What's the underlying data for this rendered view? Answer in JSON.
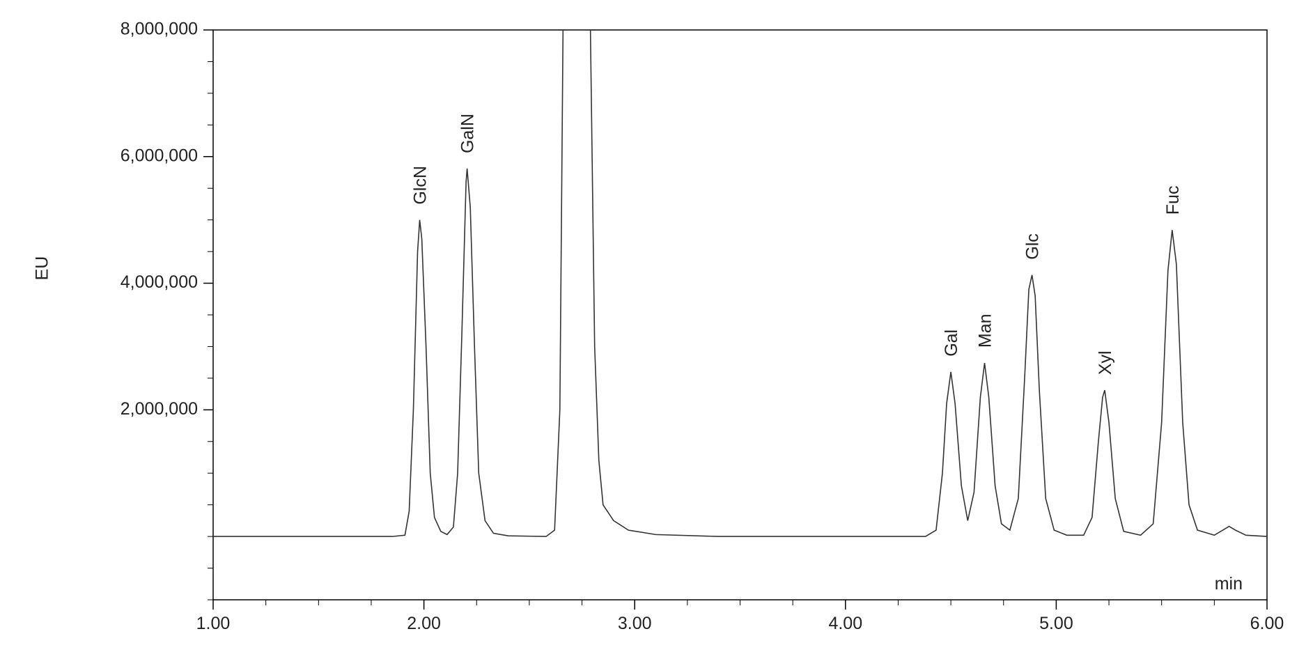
{
  "chart_data": {
    "type": "line",
    "y_label": "EU",
    "x_label": "min",
    "xlim": [
      1,
      6
    ],
    "ylim": [
      -1000000,
      8000000
    ],
    "xticks": [
      {
        "value": 1,
        "label": "1.00"
      },
      {
        "value": 2,
        "label": "2.00"
      },
      {
        "value": 3,
        "label": "3.00"
      },
      {
        "value": 4,
        "label": "4.00"
      },
      {
        "value": 5,
        "label": "5.00"
      },
      {
        "value": 6,
        "label": "6.00"
      }
    ],
    "yticks": [
      {
        "value": 2000000,
        "label": "2,000,000"
      },
      {
        "value": 4000000,
        "label": "4,000,000"
      },
      {
        "value": 6000000,
        "label": "6,000,000"
      },
      {
        "value": 8000000,
        "label": "8,000,000"
      }
    ],
    "x": [
      1.0,
      1.85,
      1.91,
      1.93,
      1.95,
      1.97,
      1.98,
      1.99,
      2.01,
      2.03,
      2.05,
      2.08,
      2.11,
      2.14,
      2.16,
      2.18,
      2.2,
      2.205,
      2.22,
      2.24,
      2.26,
      2.29,
      2.33,
      2.4,
      2.58,
      2.62,
      2.645,
      2.66,
      2.79,
      2.81,
      2.83,
      2.85,
      2.9,
      2.97,
      3.1,
      3.4,
      4.38,
      4.43,
      4.46,
      4.48,
      4.5,
      4.52,
      4.55,
      4.58,
      4.61,
      4.64,
      4.66,
      4.68,
      4.71,
      4.74,
      4.78,
      4.82,
      4.85,
      4.87,
      4.885,
      4.9,
      4.92,
      4.95,
      4.99,
      5.05,
      5.13,
      5.17,
      5.2,
      5.22,
      5.23,
      5.25,
      5.28,
      5.32,
      5.4,
      5.46,
      5.5,
      5.53,
      5.55,
      5.57,
      5.6,
      5.63,
      5.67,
      5.75,
      5.79,
      5.82,
      5.85,
      5.9,
      6.0
    ],
    "series": [
      {
        "color": "#333333",
        "values": [
          0,
          0,
          20000,
          400000,
          2000000,
          4500000,
          5000000,
          4700000,
          3000000,
          1000000,
          300000,
          80000,
          30000,
          150000,
          1000000,
          3200000,
          5600000,
          5810000,
          5200000,
          3000000,
          1000000,
          250000,
          50000,
          10000,
          0,
          100000,
          2000000,
          8000000,
          8000000,
          3000000,
          1200000,
          500000,
          250000,
          100000,
          30000,
          0,
          0,
          100000,
          1000000,
          2100000,
          2600000,
          2100000,
          800000,
          250000,
          700000,
          2200000,
          2740000,
          2200000,
          800000,
          200000,
          100000,
          600000,
          2500000,
          3900000,
          4130000,
          3800000,
          2300000,
          600000,
          100000,
          20000,
          20000,
          300000,
          1500000,
          2200000,
          2310000,
          1800000,
          600000,
          80000,
          20000,
          200000,
          1800000,
          4200000,
          4840000,
          4300000,
          1800000,
          500000,
          100000,
          20000,
          100000,
          160000,
          100000,
          20000,
          0
        ]
      }
    ],
    "annotations": [
      {
        "text": "GlcN",
        "x": 1.98,
        "y": 5000000
      },
      {
        "text": "GalN",
        "x": 2.205,
        "y": 5810000
      },
      {
        "text": "Gal",
        "x": 4.5,
        "y": 2600000
      },
      {
        "text": "Man",
        "x": 4.66,
        "y": 2740000
      },
      {
        "text": "Glc",
        "x": 4.885,
        "y": 4130000
      },
      {
        "text": "Xyl",
        "x": 5.23,
        "y": 2310000
      },
      {
        "text": "Fuc",
        "x": 5.55,
        "y": 4840000
      }
    ]
  }
}
